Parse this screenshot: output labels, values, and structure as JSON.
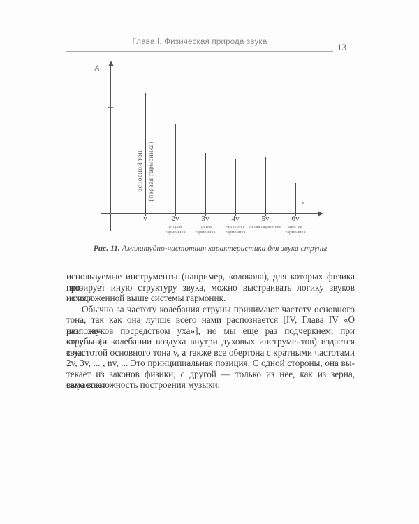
{
  "header": {
    "chapter": "Глава I. Физическая природа звука",
    "page_number": "13"
  },
  "chart_data": {
    "type": "bar",
    "title": "",
    "categories": [
      "v",
      "2v",
      "3v",
      "4v",
      "5v",
      "6v"
    ],
    "values": [
      1.0,
      0.74,
      0.5,
      0.45,
      0.47,
      0.25
    ],
    "sublabels": [
      "",
      "вторая гармоника",
      "третья гармоника",
      "четвертая гармоника",
      "пятая гармоника",
      "шестая гармоника"
    ],
    "ylabel": "A",
    "xlabel": "v",
    "ylim": [
      0,
      1.1
    ],
    "grid": false,
    "legend": false,
    "annotation_line1": "основной тон",
    "annotation_line2": "(первая гармоника)"
  },
  "figure": {
    "caption_label": "Рис. 11.",
    "caption_text": " Амплитудно-частотная характеристика для звука струны"
  },
  "body": {
    "lines": [
      "используемые инструменты (например, колокола), для которых физика про-",
      "гнозирует иную структуру звука, можно выстраивать логику звуков исходя",
      "из изложенной выше системы гармоник.",
      "Обычно за частоту колебания струны принимают частоту основного",
      "тона, так как она лучше всего нами распознается [IV, Глава IV «О разложе-",
      "нии звуков посредством уха»], но мы еще раз подчеркнем, при колебании",
      "струны (и колебании воздуха внутри духовых инструментов) издается звук",
      "с частотой основного тона v, а также все обертона с кратными частотами",
      "2v, 3v, ... , nv, ... Это принципиальная позиция. С одной стороны, она вы-",
      "текает из законов физики, с другой — только из нее, как из зерна, вырастает",
      "сама возможность построения музыки."
    ]
  }
}
